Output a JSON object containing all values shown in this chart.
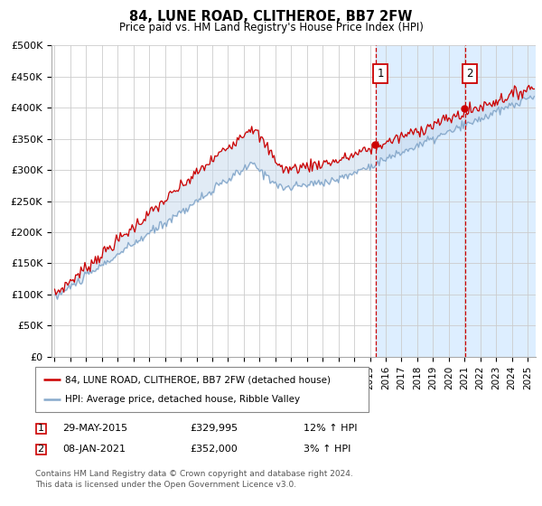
{
  "title": "84, LUNE ROAD, CLITHEROE, BB7 2FW",
  "subtitle": "Price paid vs. HM Land Registry's House Price Index (HPI)",
  "ylabel_ticks": [
    "£0",
    "£50K",
    "£100K",
    "£150K",
    "£200K",
    "£250K",
    "£300K",
    "£350K",
    "£400K",
    "£450K",
    "£500K"
  ],
  "ytick_values": [
    0,
    50000,
    100000,
    150000,
    200000,
    250000,
    300000,
    350000,
    400000,
    450000,
    500000
  ],
  "ylim": [
    0,
    500000
  ],
  "xlim_start": 1994.8,
  "xlim_end": 2025.5,
  "background_color": "#ffffff",
  "plot_bg_color": "#ffffff",
  "grid_color": "#cccccc",
  "red_line_color": "#cc0000",
  "blue_line_color": "#88aacc",
  "fill_color": "#ddeeff",
  "shade_start_year": 2015.37,
  "annotation1_year": 2015.37,
  "annotation1_value": 329995,
  "annotation2_year": 2021.02,
  "annotation2_value": 352000,
  "legend_line1": "84, LUNE ROAD, CLITHEROE, BB7 2FW (detached house)",
  "legend_line2": "HPI: Average price, detached house, Ribble Valley",
  "table_row1": [
    "1",
    "29-MAY-2015",
    "£329,995",
    "12% ↑ HPI"
  ],
  "table_row2": [
    "2",
    "08-JAN-2021",
    "£352,000",
    "3% ↑ HPI"
  ],
  "footer": "Contains HM Land Registry data © Crown copyright and database right 2024.\nThis data is licensed under the Open Government Licence v3.0."
}
